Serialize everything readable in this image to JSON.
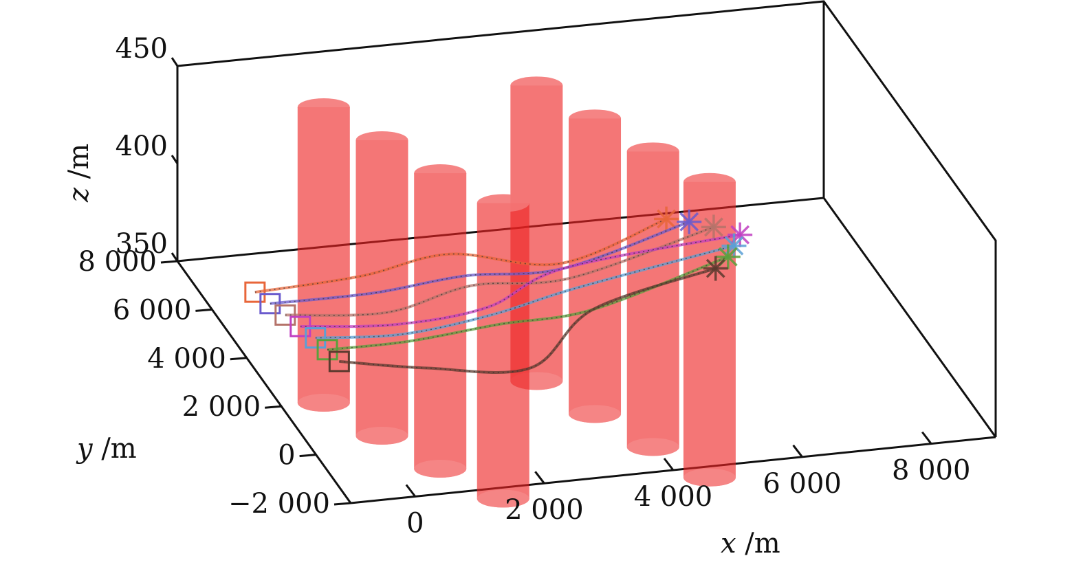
{
  "chart_data": {
    "type": "line3d",
    "title": "",
    "xlabel_var": "x",
    "xlabel_unit": " /m",
    "ylabel_var": "y",
    "ylabel_unit": " /m",
    "zlabel_var": "z",
    "zlabel_unit": " /m",
    "xlim": [
      -1000,
      9000
    ],
    "ylim": [
      -2000,
      8000
    ],
    "zlim": [
      350,
      450
    ],
    "x_ticks": [
      0,
      2000,
      4000,
      6000,
      8000
    ],
    "x_tick_labels": [
      "0",
      "2 000",
      "4 000",
      "6 000",
      "8 000"
    ],
    "y_ticks": [
      -2000,
      0,
      2000,
      4000,
      6000,
      8000
    ],
    "y_tick_labels": [
      "−2 000",
      "0",
      "2 000",
      "4 000",
      "6 000",
      "8 000"
    ],
    "z_ticks": [
      350,
      400,
      450
    ],
    "z_tick_labels": [
      "350",
      "400",
      "450"
    ],
    "obstacle_color": "#ee2222",
    "obstacles": [
      {
        "name": "cylinder-1",
        "x": 1000,
        "y": 7000
      },
      {
        "name": "cylinder-2",
        "x": 1500,
        "y": 5500
      },
      {
        "name": "cylinder-3",
        "x": 2000,
        "y": 4000
      },
      {
        "name": "cylinder-4",
        "x": 2600,
        "y": 2600
      },
      {
        "name": "cylinder-5",
        "x": 4300,
        "y": 7000
      },
      {
        "name": "cylinder-6",
        "x": 4800,
        "y": 5500
      },
      {
        "name": "cylinder-7",
        "x": 5300,
        "y": 4000
      },
      {
        "name": "cylinder-8",
        "x": 5800,
        "y": 2600
      }
    ],
    "series": [
      {
        "color": "#e8663a",
        "start": [
          -200,
          6500
        ],
        "end": [
          6500,
          7700
        ],
        "path": [
          [
            -200,
            6500
          ],
          [
            1500,
            6700
          ],
          [
            3000,
            7200
          ],
          [
            4500,
            6400
          ],
          [
            6500,
            7700
          ]
        ]
      },
      {
        "color": "#6a5acd",
        "start": [
          -100,
          6000
        ],
        "end": [
          6800,
          7500
        ],
        "path": [
          [
            -100,
            6000
          ],
          [
            1500,
            6000
          ],
          [
            3000,
            6300
          ],
          [
            4500,
            6200
          ],
          [
            6800,
            7500
          ]
        ]
      },
      {
        "color": "#b5736a",
        "start": [
          0,
          5500
        ],
        "end": [
          7100,
          7200
        ],
        "path": [
          [
            0,
            5500
          ],
          [
            1500,
            5200
          ],
          [
            3000,
            5900
          ],
          [
            4500,
            5800
          ],
          [
            7100,
            7200
          ]
        ]
      },
      {
        "color": "#c13fc1",
        "start": [
          100,
          5000
        ],
        "end": [
          7400,
          6800
        ],
        "path": [
          [
            100,
            5000
          ],
          [
            1500,
            4700
          ],
          [
            3000,
            5000
          ],
          [
            4500,
            6200
          ],
          [
            7400,
            6800
          ]
        ]
      },
      {
        "color": "#5aa0d6",
        "start": [
          200,
          4500
        ],
        "end": [
          7200,
          6400
        ],
        "path": [
          [
            200,
            4500
          ],
          [
            1500,
            4300
          ],
          [
            3000,
            4700
          ],
          [
            4500,
            5400
          ],
          [
            7200,
            6400
          ]
        ]
      },
      {
        "color": "#5aa03c",
        "start": [
          250,
          4000
        ],
        "end": [
          7000,
          6000
        ],
        "path": [
          [
            250,
            4000
          ],
          [
            1500,
            4000
          ],
          [
            3000,
            4300
          ],
          [
            4500,
            4500
          ],
          [
            7000,
            6000
          ]
        ]
      },
      {
        "color": "#5c3a2e",
        "start": [
          300,
          3500
        ],
        "end": [
          6700,
          5600
        ],
        "path": [
          [
            300,
            3500
          ],
          [
            1500,
            2900
          ],
          [
            3000,
            2500
          ],
          [
            4500,
            4500
          ],
          [
            6700,
            5600
          ]
        ]
      }
    ]
  }
}
